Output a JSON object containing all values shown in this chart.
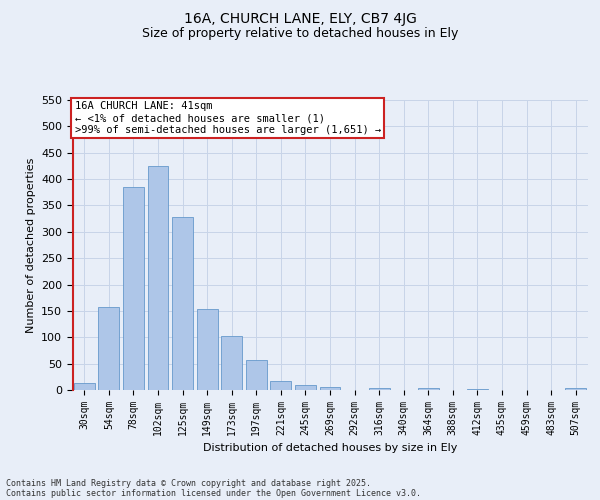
{
  "title_line1": "16A, CHURCH LANE, ELY, CB7 4JG",
  "title_line2": "Size of property relative to detached houses in Ely",
  "xlabel": "Distribution of detached houses by size in Ely",
  "ylabel": "Number of detached properties",
  "categories": [
    "30sqm",
    "54sqm",
    "78sqm",
    "102sqm",
    "125sqm",
    "149sqm",
    "173sqm",
    "197sqm",
    "221sqm",
    "245sqm",
    "269sqm",
    "292sqm",
    "316sqm",
    "340sqm",
    "364sqm",
    "388sqm",
    "412sqm",
    "435sqm",
    "459sqm",
    "483sqm",
    "507sqm"
  ],
  "values": [
    13,
    157,
    385,
    425,
    328,
    153,
    103,
    56,
    18,
    10,
    5,
    0,
    4,
    0,
    3,
    0,
    2,
    0,
    0,
    0,
    4
  ],
  "bar_color": "#aec6e8",
  "bar_edge_color": "#6699cc",
  "highlight_color": "#cc2222",
  "annotation_text": "16A CHURCH LANE: 41sqm\n← <1% of detached houses are smaller (1)\n>99% of semi-detached houses are larger (1,651) →",
  "annotation_box_color": "white",
  "annotation_box_edge_color": "#cc2222",
  "ylim": [
    0,
    550
  ],
  "yticks": [
    0,
    50,
    100,
    150,
    200,
    250,
    300,
    350,
    400,
    450,
    500,
    550
  ],
  "grid_color": "#c8d4e8",
  "background_color": "#e8eef8",
  "footer_line1": "Contains HM Land Registry data © Crown copyright and database right 2025.",
  "footer_line2": "Contains public sector information licensed under the Open Government Licence v3.0.",
  "title_fontsize": 10,
  "subtitle_fontsize": 9,
  "tick_fontsize": 7,
  "ylabel_fontsize": 8,
  "xlabel_fontsize": 8,
  "annotation_fontsize": 7.5
}
